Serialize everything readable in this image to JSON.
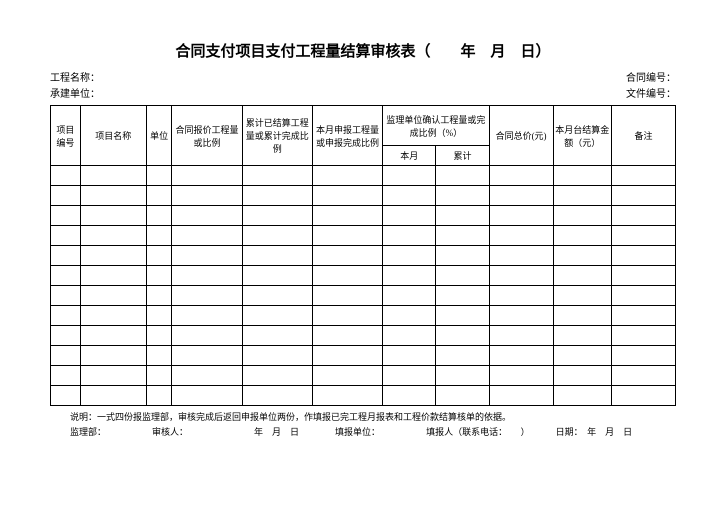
{
  "title": "合同支付项目支付工程量结算审核表（　　年　月　日）",
  "meta": {
    "left1_label": "工程名称：",
    "left2_label": "承建单位：",
    "right1_label": "合同编号：",
    "right2_label": "文件编号："
  },
  "headers": {
    "c1": "项目编号",
    "c2": "项目名称",
    "c3": "单位",
    "c4": "合同报价工程量或比例",
    "c5": "累计已结算工程量或累计完成比例",
    "c6": "本月申报工程量或申报完成比例",
    "c7": "监理单位确认工程量或完成比例（%）",
    "c7a": "本月",
    "c7b": "累计",
    "c8": "合同总价(元)",
    "c9": "本月台结算金额（元）",
    "c10": "备注"
  },
  "footer": {
    "note_label": "说明：",
    "note_text": "一式四份报监理部，审核完成后返回申报单位两份，作填报已完工程月报表和工程价款结算核单的依据。",
    "f1": "监理部：",
    "f2": "审核人：",
    "f3": "年　月　日",
    "f4": "填报单位：",
    "f5": "填报人（联系电话：　　）",
    "f6": "日期：　年　月　日"
  },
  "body_rows": 12
}
